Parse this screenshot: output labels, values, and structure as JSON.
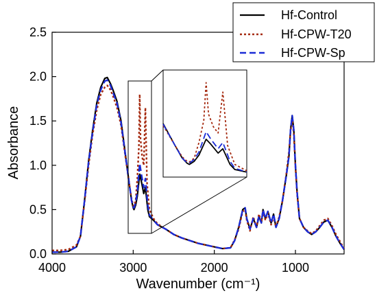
{
  "chart_data": {
    "type": "line",
    "title": "",
    "xlabel": "Wavenumber (cm⁻¹)",
    "ylabel": "Absorbance",
    "xlim": [
      4000,
      400
    ],
    "ylim": [
      0.0,
      2.5
    ],
    "x_reversed": true,
    "xticks": [
      "4000",
      "3000",
      "2000",
      "1000"
    ],
    "yticks": [
      "0.0",
      "0.5",
      "1.0",
      "1.5",
      "2.0",
      "2.5"
    ],
    "grid": false,
    "legend_position": "top-right",
    "inset": "zoom of 3100-2750 cm-1 region shown top-center",
    "series": [
      {
        "name": "Hf-Control",
        "color": "#000000",
        "style": "solid",
        "points": [
          [
            4000,
            0.02
          ],
          [
            3900,
            0.02
          ],
          [
            3800,
            0.03
          ],
          [
            3700,
            0.08
          ],
          [
            3650,
            0.2
          ],
          [
            3600,
            0.6
          ],
          [
            3550,
            1.05
          ],
          [
            3500,
            1.4
          ],
          [
            3450,
            1.7
          ],
          [
            3400,
            1.88
          ],
          [
            3350,
            1.98
          ],
          [
            3320,
            1.99
          ],
          [
            3280,
            1.92
          ],
          [
            3250,
            1.85
          ],
          [
            3200,
            1.72
          ],
          [
            3150,
            1.5
          ],
          [
            3100,
            1.15
          ],
          [
            3050,
            0.8
          ],
          [
            3020,
            0.6
          ],
          [
            3000,
            0.52
          ],
          [
            2990,
            0.5
          ],
          [
            2970,
            0.55
          ],
          [
            2950,
            0.65
          ],
          [
            2920,
            0.9
          ],
          [
            2900,
            0.82
          ],
          [
            2870,
            0.68
          ],
          [
            2850,
            0.75
          ],
          [
            2820,
            0.5
          ],
          [
            2800,
            0.42
          ],
          [
            2750,
            0.38
          ],
          [
            2700,
            0.33
          ],
          [
            2600,
            0.28
          ],
          [
            2500,
            0.22
          ],
          [
            2400,
            0.18
          ],
          [
            2300,
            0.15
          ],
          [
            2200,
            0.12
          ],
          [
            2100,
            0.1
          ],
          [
            2000,
            0.08
          ],
          [
            1900,
            0.06
          ],
          [
            1800,
            0.07
          ],
          [
            1750,
            0.15
          ],
          [
            1700,
            0.3
          ],
          [
            1650,
            0.5
          ],
          [
            1620,
            0.52
          ],
          [
            1600,
            0.4
          ],
          [
            1560,
            0.28
          ],
          [
            1520,
            0.4
          ],
          [
            1480,
            0.3
          ],
          [
            1450,
            0.42
          ],
          [
            1420,
            0.35
          ],
          [
            1400,
            0.5
          ],
          [
            1370,
            0.4
          ],
          [
            1340,
            0.48
          ],
          [
            1300,
            0.35
          ],
          [
            1270,
            0.45
          ],
          [
            1240,
            0.3
          ],
          [
            1200,
            0.4
          ],
          [
            1160,
            0.6
          ],
          [
            1110,
            0.9
          ],
          [
            1080,
            1.1
          ],
          [
            1060,
            1.4
          ],
          [
            1040,
            1.56
          ],
          [
            1020,
            1.4
          ],
          [
            1000,
            1.0
          ],
          [
            980,
            0.7
          ],
          [
            950,
            0.4
          ],
          [
            900,
            0.3
          ],
          [
            850,
            0.25
          ],
          [
            800,
            0.22
          ],
          [
            750,
            0.25
          ],
          [
            700,
            0.3
          ],
          [
            650,
            0.36
          ],
          [
            600,
            0.38
          ],
          [
            550,
            0.3
          ],
          [
            500,
            0.2
          ],
          [
            450,
            0.12
          ],
          [
            400,
            0.05
          ]
        ]
      },
      {
        "name": "Hf-CPW-T20",
        "color": "#a52a10",
        "style": "dotted",
        "points": [
          [
            4000,
            0.04
          ],
          [
            3900,
            0.04
          ],
          [
            3800,
            0.05
          ],
          [
            3700,
            0.1
          ],
          [
            3650,
            0.2
          ],
          [
            3600,
            0.58
          ],
          [
            3550,
            1.0
          ],
          [
            3500,
            1.35
          ],
          [
            3450,
            1.62
          ],
          [
            3400,
            1.8
          ],
          [
            3350,
            1.88
          ],
          [
            3320,
            1.9
          ],
          [
            3280,
            1.85
          ],
          [
            3250,
            1.78
          ],
          [
            3200,
            1.65
          ],
          [
            3150,
            1.45
          ],
          [
            3100,
            1.12
          ],
          [
            3050,
            0.8
          ],
          [
            3020,
            0.62
          ],
          [
            3000,
            0.55
          ],
          [
            2990,
            0.54
          ],
          [
            2970,
            0.6
          ],
          [
            2950,
            0.85
          ],
          [
            2930,
            1.2
          ],
          [
            2920,
            1.8
          ],
          [
            2910,
            1.3
          ],
          [
            2890,
            1.1
          ],
          [
            2870,
            1.0
          ],
          [
            2850,
            1.65
          ],
          [
            2830,
            0.8
          ],
          [
            2800,
            0.5
          ],
          [
            2750,
            0.4
          ],
          [
            2700,
            0.34
          ],
          [
            2600,
            0.28
          ],
          [
            2500,
            0.22
          ],
          [
            2400,
            0.18
          ],
          [
            2300,
            0.15
          ],
          [
            2200,
            0.12
          ],
          [
            2100,
            0.1
          ],
          [
            2000,
            0.08
          ],
          [
            1900,
            0.06
          ],
          [
            1800,
            0.07
          ],
          [
            1750,
            0.16
          ],
          [
            1700,
            0.28
          ],
          [
            1650,
            0.48
          ],
          [
            1620,
            0.5
          ],
          [
            1600,
            0.38
          ],
          [
            1560,
            0.26
          ],
          [
            1520,
            0.42
          ],
          [
            1480,
            0.3
          ],
          [
            1450,
            0.45
          ],
          [
            1420,
            0.36
          ],
          [
            1400,
            0.48
          ],
          [
            1370,
            0.38
          ],
          [
            1340,
            0.46
          ],
          [
            1300,
            0.33
          ],
          [
            1270,
            0.42
          ],
          [
            1240,
            0.3
          ],
          [
            1200,
            0.42
          ],
          [
            1160,
            0.6
          ],
          [
            1110,
            0.92
          ],
          [
            1080,
            1.15
          ],
          [
            1060,
            1.38
          ],
          [
            1040,
            1.52
          ],
          [
            1020,
            1.35
          ],
          [
            1000,
            0.98
          ],
          [
            980,
            0.68
          ],
          [
            950,
            0.4
          ],
          [
            900,
            0.3
          ],
          [
            850,
            0.26
          ],
          [
            800,
            0.23
          ],
          [
            750,
            0.26
          ],
          [
            700,
            0.32
          ],
          [
            650,
            0.38
          ],
          [
            600,
            0.4
          ],
          [
            550,
            0.32
          ],
          [
            500,
            0.22
          ],
          [
            450,
            0.14
          ],
          [
            400,
            0.06
          ]
        ]
      },
      {
        "name": "Hf-CPW-Sp",
        "color": "#1a2bd6",
        "style": "dashed",
        "points": [
          [
            4000,
            0.02
          ],
          [
            3900,
            0.02
          ],
          [
            3800,
            0.03
          ],
          [
            3700,
            0.08
          ],
          [
            3650,
            0.2
          ],
          [
            3600,
            0.6
          ],
          [
            3550,
            1.04
          ],
          [
            3500,
            1.38
          ],
          [
            3450,
            1.68
          ],
          [
            3400,
            1.85
          ],
          [
            3350,
            1.95
          ],
          [
            3320,
            1.96
          ],
          [
            3280,
            1.9
          ],
          [
            3250,
            1.82
          ],
          [
            3200,
            1.7
          ],
          [
            3150,
            1.48
          ],
          [
            3100,
            1.14
          ],
          [
            3050,
            0.8
          ],
          [
            3020,
            0.6
          ],
          [
            3000,
            0.53
          ],
          [
            2990,
            0.52
          ],
          [
            2970,
            0.58
          ],
          [
            2950,
            0.7
          ],
          [
            2920,
            1.02
          ],
          [
            2900,
            0.9
          ],
          [
            2870,
            0.75
          ],
          [
            2850,
            0.85
          ],
          [
            2820,
            0.55
          ],
          [
            2800,
            0.44
          ],
          [
            2750,
            0.38
          ],
          [
            2700,
            0.33
          ],
          [
            2600,
            0.28
          ],
          [
            2500,
            0.22
          ],
          [
            2400,
            0.18
          ],
          [
            2300,
            0.15
          ],
          [
            2200,
            0.12
          ],
          [
            2100,
            0.1
          ],
          [
            2000,
            0.08
          ],
          [
            1900,
            0.06
          ],
          [
            1800,
            0.07
          ],
          [
            1750,
            0.15
          ],
          [
            1700,
            0.3
          ],
          [
            1650,
            0.5
          ],
          [
            1620,
            0.52
          ],
          [
            1600,
            0.4
          ],
          [
            1560,
            0.28
          ],
          [
            1520,
            0.4
          ],
          [
            1480,
            0.3
          ],
          [
            1450,
            0.43
          ],
          [
            1420,
            0.35
          ],
          [
            1400,
            0.5
          ],
          [
            1370,
            0.4
          ],
          [
            1340,
            0.48
          ],
          [
            1300,
            0.35
          ],
          [
            1270,
            0.45
          ],
          [
            1240,
            0.3
          ],
          [
            1200,
            0.4
          ],
          [
            1160,
            0.6
          ],
          [
            1110,
            0.9
          ],
          [
            1080,
            1.1
          ],
          [
            1060,
            1.4
          ],
          [
            1040,
            1.56
          ],
          [
            1020,
            1.4
          ],
          [
            1000,
            1.0
          ],
          [
            980,
            0.7
          ],
          [
            950,
            0.4
          ],
          [
            900,
            0.3
          ],
          [
            850,
            0.25
          ],
          [
            800,
            0.22
          ],
          [
            750,
            0.25
          ],
          [
            700,
            0.3
          ],
          [
            650,
            0.36
          ],
          [
            600,
            0.38
          ],
          [
            550,
            0.3
          ],
          [
            500,
            0.2
          ],
          [
            450,
            0.12
          ],
          [
            400,
            0.05
          ]
        ]
      }
    ]
  }
}
